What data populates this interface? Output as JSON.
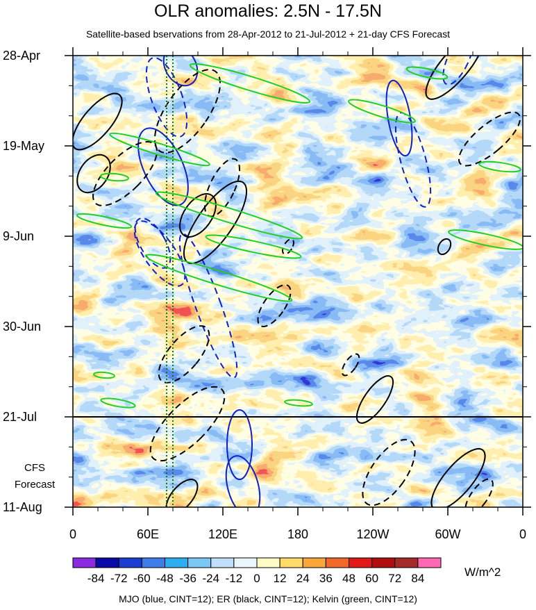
{
  "chart_data": {
    "type": "heatmap",
    "title": "OLR anomalies: 2.5N - 17.5N",
    "subtitle": "Satellite-based bservations from 28-Apr-2012 to 21-Jul-2012 + 21-day CFS Forecast",
    "x_ticks": [
      "0",
      "60E",
      "120E",
      "180",
      "120W",
      "60W",
      "0"
    ],
    "x_range": [
      0,
      360
    ],
    "y_ticks": [
      "28-Apr",
      "19-May",
      "9-Jun",
      "30-Jun",
      "21-Jul",
      "11-Aug"
    ],
    "y_range": [
      "2012-04-28",
      "2012-08-11"
    ],
    "observation_end": "2012-07-21",
    "forecast_label_line1": "CFS",
    "forecast_label_line2": "Forecast",
    "colorbar": {
      "levels": [
        -84,
        -72,
        -60,
        -48,
        -36,
        -24,
        -12,
        0,
        12,
        24,
        36,
        48,
        60,
        72,
        84
      ],
      "colors": [
        "#8a2be2",
        "#0a0aa8",
        "#1a3fd0",
        "#3f7ee8",
        "#2eaef0",
        "#7cc8f4",
        "#bfe0f8",
        "#eaf6fb",
        "#fffcc8",
        "#ffdc6a",
        "#f7a838",
        "#f0682a",
        "#e01818",
        "#b00e0e",
        "#a52a2a",
        "#ff69b4"
      ],
      "units": "W/m^2"
    },
    "footnote": "MJO (blue, CINT=12); ER (black, CINT=12); Kelvin (green, CINT=12)",
    "contour_colors": {
      "mjo": "#1020c8",
      "er": "#000000",
      "kelvin": "#20d020"
    },
    "reference_lines": {
      "color": "#008000",
      "style": "dotted"
    }
  }
}
